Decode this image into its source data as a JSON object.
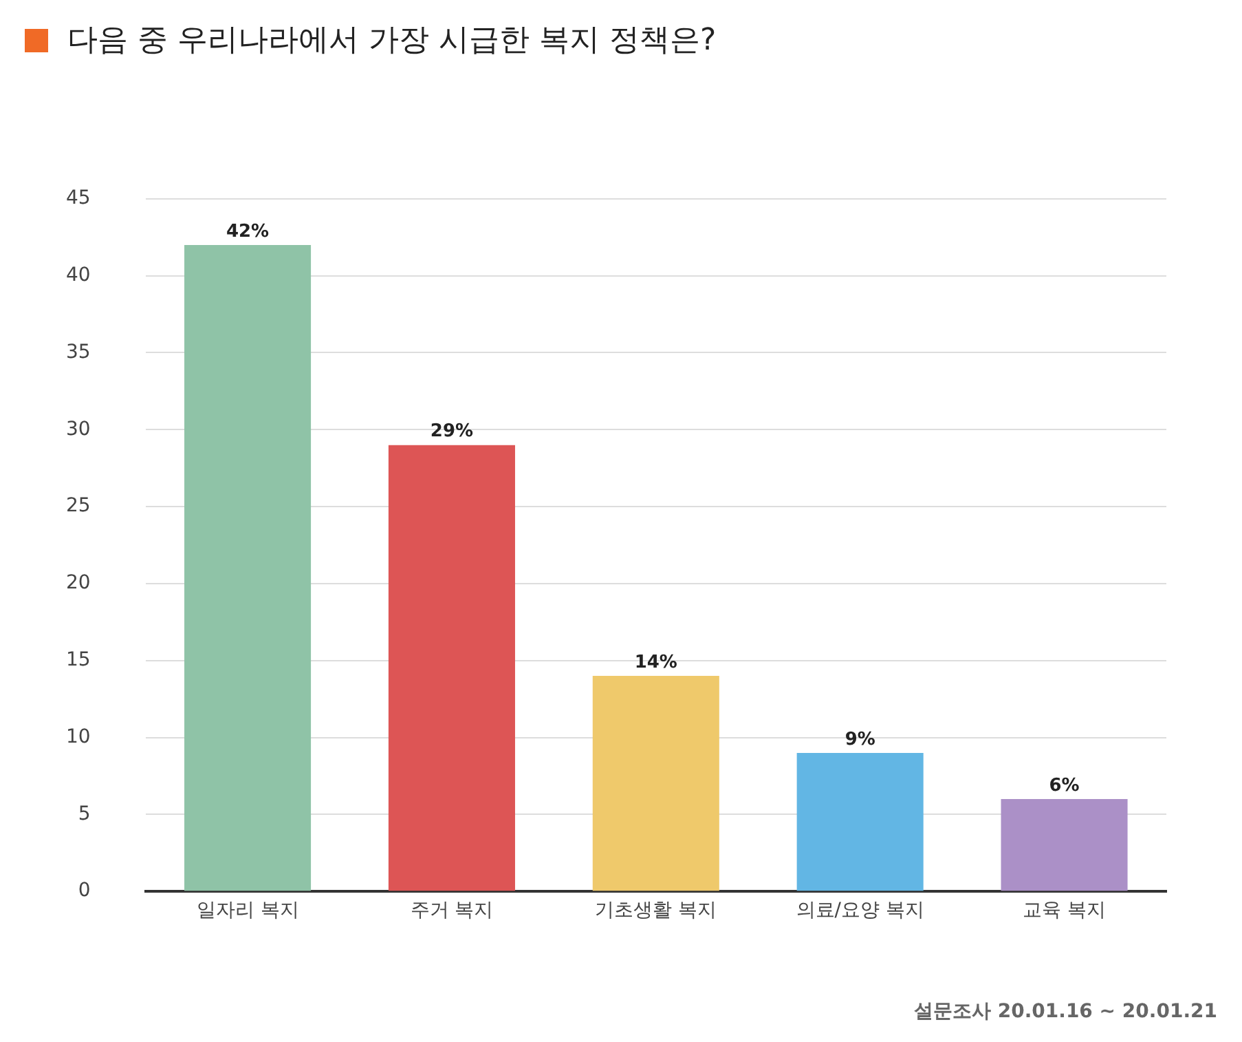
{
  "chart_data": {
    "type": "bar",
    "title": "다음 중 우리나라에서 가장 시급한 복지 정책은?",
    "categories": [
      "일자리 복지",
      "주거 복지",
      "기초생활 복지",
      "의료/요양 복지",
      "교육 복지"
    ],
    "values": [
      42,
      29,
      14,
      9,
      6
    ],
    "colors": [
      "#8fc3a7",
      "#dd5555",
      "#efc96b",
      "#62b6e4",
      "#ab90c7"
    ],
    "value_labels": [
      "42%",
      "29%",
      "14%",
      "9%",
      "6%"
    ],
    "ylim": [
      0,
      45
    ],
    "yticks": [
      0,
      5,
      10,
      15,
      20,
      25,
      30,
      35,
      40,
      45
    ],
    "grid": "y",
    "legend": false,
    "annotations": [
      "설문조사 20.01.16 ~ 20.01.21"
    ]
  }
}
